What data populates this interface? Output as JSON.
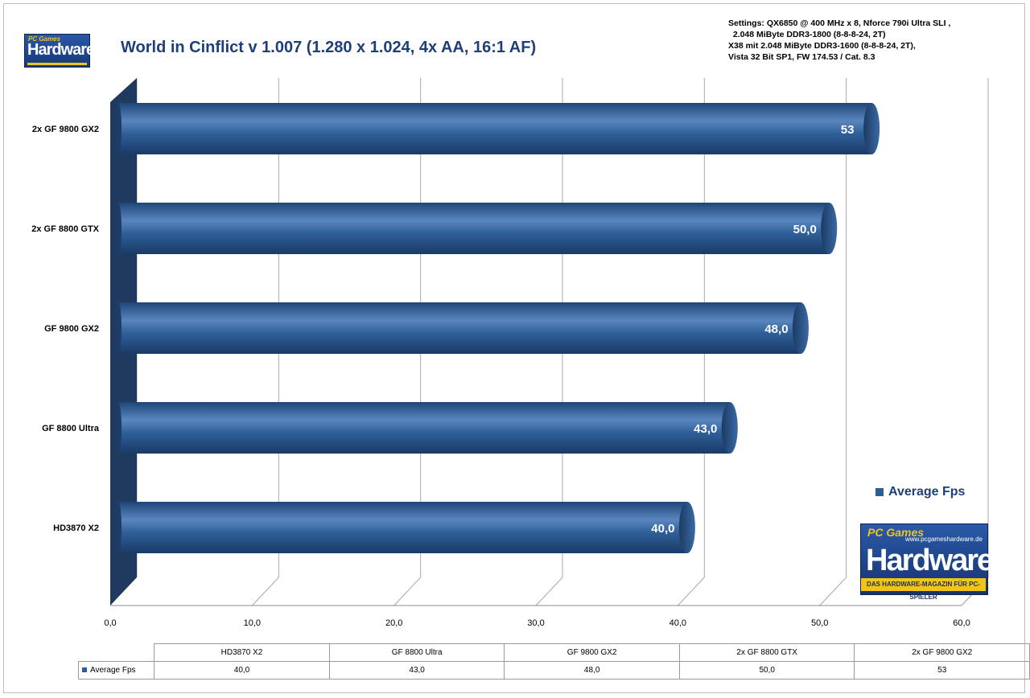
{
  "title": "World in Cinflict v 1.007 (1.280 x 1.024, 4x AA, 16:1 AF)",
  "settings": "Settings: QX6850 @ 400 MHz x 8, Nforce 790i Ultra SLI ,\n  2.048 MiByte DDR3-1800 (8-8-8-24, 2T)\nX38 mit 2.048 MiByte DDR3-1600 (8-8-8-24, 2T),\nVista 32 Bit SP1, FW 174.53 / Cat. 8.3",
  "logo_small": {
    "top": "PC Games",
    "word": "Hardware"
  },
  "logo_big": {
    "top": "PC Games",
    "url": "www.pcgameshardware.de",
    "word": "Hardware",
    "sub": "DAS HARDWARE-MAGAZIN FÜR PC-SPIELER"
  },
  "legend": {
    "label": "Average Fps"
  },
  "colors": {
    "bar": "#2c5e94",
    "bar_dark": "#1c3d66",
    "wall": "#1f3a5e",
    "title": "#1f3f78"
  },
  "chart_data": {
    "type": "bar",
    "orientation": "horizontal",
    "categories": [
      "HD3870  X2",
      "GF 8800  Ultra",
      "GF 9800  GX2",
      "2x GF 8800  GTX",
      "2x GF 9800  GX2"
    ],
    "series": [
      {
        "name": "Average Fps",
        "values": [
          40.0,
          43.0,
          48.0,
          50.0,
          53
        ],
        "labels": [
          "40,0",
          "43,0",
          "48,0",
          "50,0",
          "53"
        ]
      }
    ],
    "xlim": [
      0,
      60
    ],
    "xticks": [
      0,
      10,
      20,
      30,
      40,
      50,
      60
    ],
    "xtick_labels": [
      "0,0",
      "10,0",
      "20,0",
      "30,0",
      "40,0",
      "50,0",
      "60,0"
    ],
    "grid": true,
    "legend_position": "right"
  },
  "table": {
    "headers": [
      "HD3870 X2",
      "GF 8800 Ultra",
      "GF 9800 GX2",
      "2x GF 8800 GTX",
      "2x GF 9800 GX2"
    ],
    "row_label": "Average Fps",
    "values": [
      "40,0",
      "43,0",
      "48,0",
      "50,0",
      "53"
    ]
  }
}
